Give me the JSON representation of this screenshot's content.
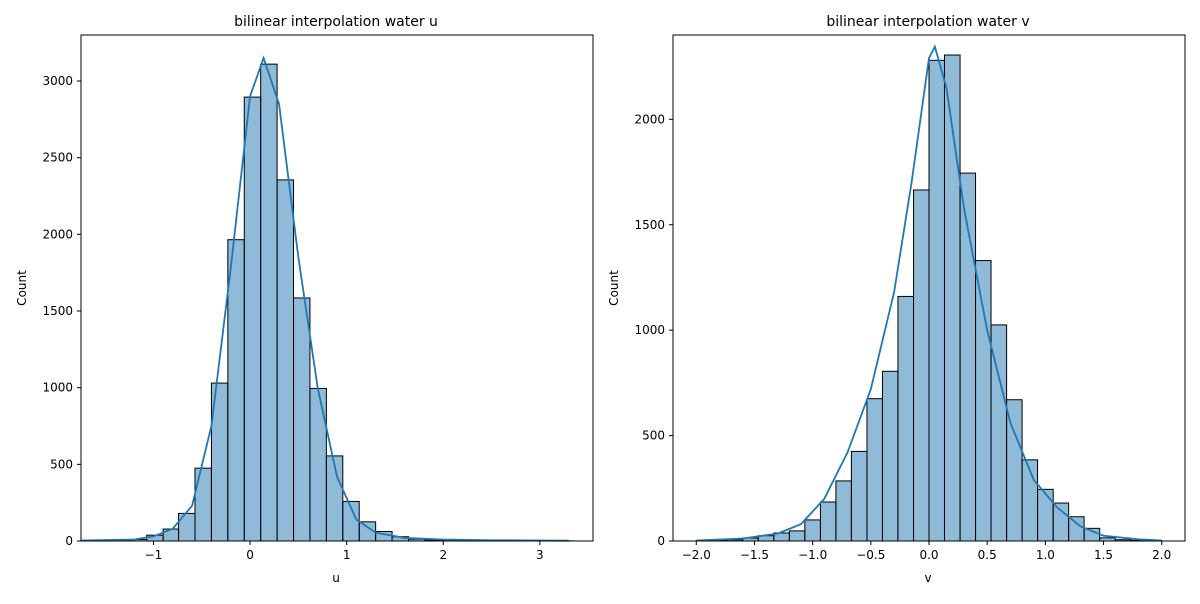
{
  "chart_data": [
    {
      "type": "bar",
      "title": "bilinear interpolation water u",
      "xlabel": "u",
      "ylabel": "Count",
      "xlim": [
        -1.75,
        3.55
      ],
      "ylim": [
        0,
        3300
      ],
      "xticks": [
        -1,
        0,
        1,
        2,
        3
      ],
      "yticks": [
        0,
        500,
        1000,
        1500,
        2000,
        2500,
        3000
      ],
      "bar_color": "#1f77b4",
      "bin_edges": [
        -1.75,
        -1.58,
        -1.41,
        -1.24,
        -1.07,
        -0.9,
        -0.74,
        -0.57,
        -0.4,
        -0.23,
        -0.06,
        0.11,
        0.28,
        0.45,
        0.62,
        0.79,
        0.96,
        1.13,
        1.3,
        1.47,
        1.64,
        1.81,
        1.98,
        2.15,
        2.32,
        2.49,
        2.66,
        2.83,
        3.0,
        3.17,
        3.34
      ],
      "values": [
        2,
        3,
        5,
        10,
        38,
        78,
        180,
        475,
        1030,
        1965,
        2895,
        3110,
        2355,
        1585,
        995,
        555,
        258,
        125,
        62,
        28,
        12,
        6,
        3,
        2,
        1,
        1,
        0,
        0,
        1,
        1
      ],
      "kde_x": [
        -1.75,
        -1.2,
        -1.0,
        -0.8,
        -0.6,
        -0.4,
        -0.2,
        0.0,
        0.14,
        0.3,
        0.5,
        0.7,
        0.9,
        1.1,
        1.3,
        1.6,
        2.0,
        2.5,
        3.3
      ],
      "kde_y": [
        3,
        10,
        30,
        80,
        230,
        750,
        1780,
        2900,
        3150,
        2850,
        1850,
        1000,
        420,
        140,
        55,
        20,
        10,
        5,
        2
      ]
    },
    {
      "type": "bar",
      "title": "bilinear interpolation water v",
      "xlabel": "v",
      "ylabel": "Count",
      "xlim": [
        -2.2,
        2.2
      ],
      "ylim": [
        0,
        2400
      ],
      "xticks": [
        -2.0,
        -1.5,
        -1.0,
        -0.5,
        0.0,
        0.5,
        1.0,
        1.5,
        2.0
      ],
      "xtick_labels": [
        "−2.0",
        "−1.5",
        "−1.0",
        "−0.5",
        "0.0",
        "0.5",
        "1.0",
        "1.5",
        "2.0"
      ],
      "yticks": [
        0,
        500,
        1000,
        1500,
        2000
      ],
      "bar_color": "#1f77b4",
      "bin_edges": [
        -2.0,
        -1.867,
        -1.733,
        -1.6,
        -1.467,
        -1.333,
        -1.2,
        -1.067,
        -0.933,
        -0.8,
        -0.667,
        -0.533,
        -0.4,
        -0.267,
        -0.133,
        0.0,
        0.133,
        0.267,
        0.4,
        0.533,
        0.667,
        0.8,
        0.933,
        1.067,
        1.2,
        1.333,
        1.467,
        1.6,
        1.733,
        1.867,
        2.0
      ],
      "values": [
        2,
        3,
        6,
        14,
        25,
        38,
        48,
        100,
        185,
        285,
        425,
        675,
        805,
        1160,
        1665,
        2280,
        2305,
        1745,
        1330,
        1025,
        670,
        385,
        245,
        180,
        115,
        60,
        15,
        6,
        3,
        2
      ],
      "kde_x": [
        -2.0,
        -1.6,
        -1.3,
        -1.1,
        -0.9,
        -0.7,
        -0.5,
        -0.3,
        -0.15,
        0.0,
        0.05,
        0.15,
        0.3,
        0.5,
        0.7,
        0.9,
        1.1,
        1.3,
        1.5,
        1.8,
        2.0
      ],
      "kde_y": [
        2,
        12,
        35,
        80,
        200,
        420,
        720,
        1180,
        1700,
        2290,
        2345,
        2150,
        1580,
        1000,
        560,
        290,
        160,
        70,
        25,
        8,
        2
      ]
    }
  ]
}
